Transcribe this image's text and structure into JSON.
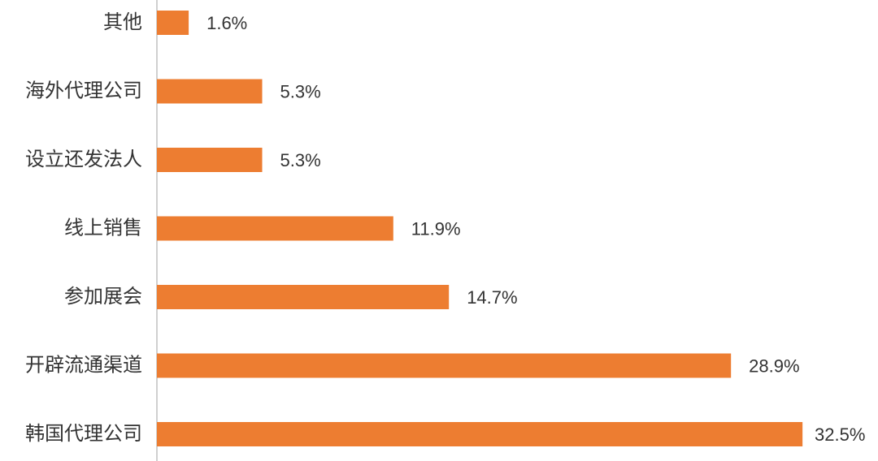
{
  "chart_data": {
    "type": "bar",
    "orientation": "horizontal",
    "categories": [
      "其他",
      "海外代理公司",
      "设立还发法人",
      "线上销售",
      "参加展会",
      "开辟流通渠道",
      "韩国代理公司"
    ],
    "values": [
      1.6,
      5.3,
      5.3,
      11.9,
      14.7,
      28.9,
      32.5
    ],
    "value_labels": [
      "1.6%",
      "5.3%",
      "5.3%",
      "11.9%",
      "14.7%",
      "28.9%",
      "32.5%"
    ],
    "color": "#ed7d31",
    "xlim": [
      0,
      36.3
    ]
  }
}
